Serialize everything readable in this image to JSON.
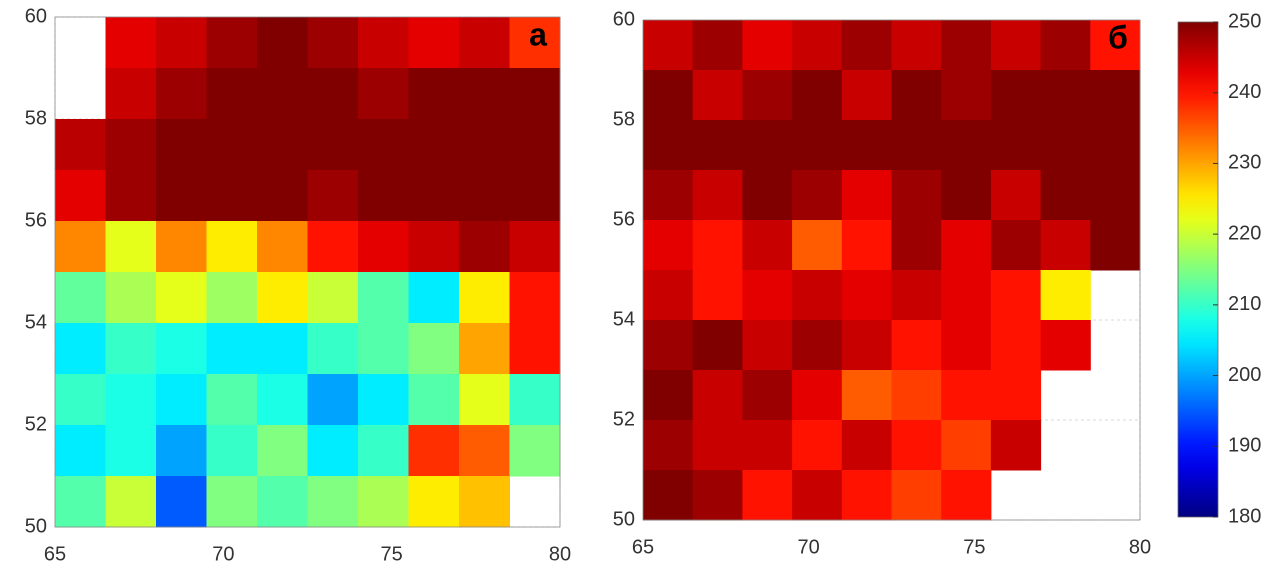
{
  "chart_data": [
    {
      "type": "heatmap",
      "label": "а",
      "xlim": [
        65,
        80
      ],
      "ylim": [
        50,
        60
      ],
      "xticks": [
        65,
        70,
        75,
        80
      ],
      "yticks": [
        50,
        52,
        54,
        56,
        58,
        60
      ],
      "grid": true,
      "rows": [
        [
          null,
          243,
          245,
          248,
          250,
          248,
          245,
          243,
          245,
          238
        ],
        [
          null,
          245,
          248,
          250,
          250,
          250,
          248,
          250,
          250,
          250
        ],
        [
          246,
          248,
          250,
          250,
          250,
          250,
          250,
          250,
          250,
          250
        ],
        [
          243,
          248,
          250,
          250,
          250,
          248,
          250,
          250,
          250,
          250
        ],
        [
          232,
          222,
          232,
          225,
          232,
          240,
          243,
          245,
          248,
          245
        ],
        [
          213,
          218,
          222,
          217,
          225,
          220,
          212,
          205,
          225,
          240
        ],
        [
          205,
          210,
          208,
          205,
          205,
          210,
          212,
          215,
          230,
          240
        ],
        [
          210,
          208,
          205,
          212,
          208,
          200,
          205,
          212,
          222,
          210
        ],
        [
          205,
          208,
          200,
          210,
          215,
          205,
          210,
          238,
          235,
          215
        ],
        [
          212,
          220,
          195,
          215,
          212,
          215,
          218,
          225,
          228,
          null
        ]
      ]
    },
    {
      "type": "heatmap",
      "label": "б",
      "xlim": [
        65,
        80
      ],
      "ylim": [
        50,
        60
      ],
      "xticks": [
        65,
        70,
        75,
        80
      ],
      "yticks": [
        50,
        52,
        54,
        56,
        58,
        60
      ],
      "grid": true,
      "rows": [
        [
          245,
          248,
          243,
          245,
          248,
          245,
          248,
          245,
          248,
          240
        ],
        [
          250,
          245,
          248,
          250,
          245,
          250,
          248,
          250,
          250,
          250
        ],
        [
          250,
          250,
          250,
          250,
          250,
          250,
          250,
          250,
          250,
          250
        ],
        [
          248,
          245,
          250,
          248,
          243,
          248,
          250,
          245,
          250,
          250
        ],
        [
          243,
          240,
          245,
          235,
          240,
          248,
          243,
          248,
          245,
          250
        ],
        [
          245,
          240,
          243,
          245,
          243,
          245,
          243,
          240,
          225,
          null
        ],
        [
          248,
          250,
          245,
          248,
          245,
          240,
          243,
          240,
          243,
          null
        ],
        [
          250,
          245,
          248,
          243,
          235,
          237,
          240,
          240,
          null,
          null
        ],
        [
          248,
          245,
          245,
          240,
          245,
          240,
          237,
          245,
          null,
          null
        ],
        [
          250,
          248,
          240,
          245,
          240,
          237,
          240,
          null,
          null,
          null
        ]
      ],
      "colorbar": {
        "lim": [
          180,
          250
        ],
        "ticks": [
          180,
          190,
          200,
          210,
          220,
          230,
          240,
          250
        ]
      }
    }
  ]
}
